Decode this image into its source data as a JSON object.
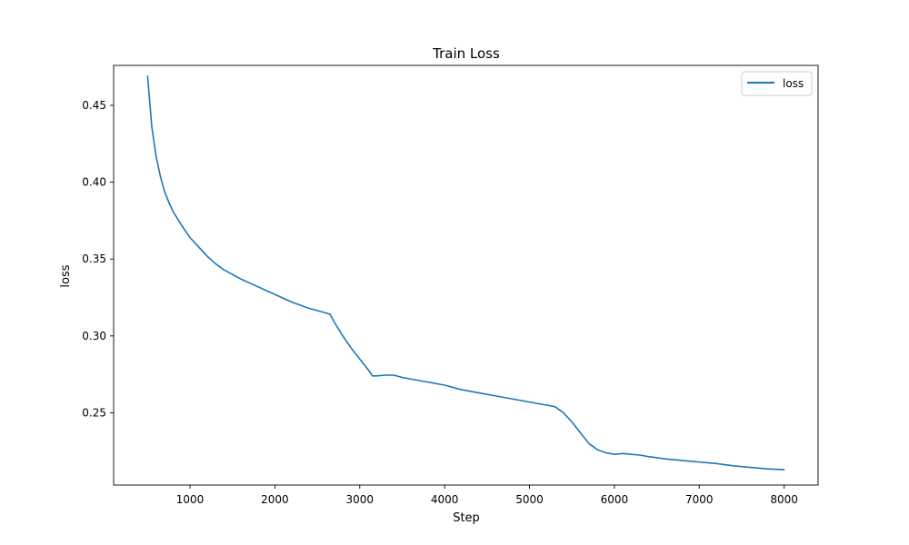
{
  "chart_data": {
    "type": "line",
    "title": "Train Loss",
    "xlabel": "Step",
    "ylabel": "loss",
    "xlim": [
      100,
      8400
    ],
    "ylim": [
      0.203,
      0.476
    ],
    "xticks": [
      1000,
      2000,
      3000,
      4000,
      5000,
      6000,
      7000,
      8000
    ],
    "yticks": [
      0.25,
      0.3,
      0.35,
      0.4,
      0.45
    ],
    "ytick_labels": [
      "0.25",
      "0.30",
      "0.35",
      "0.40",
      "0.45"
    ],
    "grid": false,
    "legend_position": "top-right",
    "series": [
      {
        "name": "loss",
        "color": "#1f77b4",
        "x": [
          500,
          550,
          600,
          650,
          700,
          750,
          800,
          900,
          1000,
          1100,
          1200,
          1300,
          1400,
          1600,
          1800,
          2000,
          2200,
          2400,
          2600,
          2650,
          2700,
          2800,
          2900,
          3000,
          3100,
          3150,
          3200,
          3300,
          3400,
          3500,
          3600,
          3800,
          4000,
          4200,
          4400,
          4600,
          4800,
          5000,
          5200,
          5300,
          5350,
          5400,
          5500,
          5600,
          5700,
          5800,
          5900,
          6000,
          6100,
          6200,
          6300,
          6400,
          6600,
          6800,
          7000,
          7200,
          7400,
          7600,
          7800,
          8000
        ],
        "y": [
          0.469,
          0.436,
          0.417,
          0.404,
          0.394,
          0.387,
          0.381,
          0.372,
          0.364,
          0.358,
          0.352,
          0.347,
          0.343,
          0.337,
          0.332,
          0.327,
          0.322,
          0.318,
          0.315,
          0.314,
          0.309,
          0.3,
          0.292,
          0.285,
          0.278,
          0.274,
          0.274,
          0.2745,
          0.2745,
          0.273,
          0.272,
          0.27,
          0.268,
          0.265,
          0.263,
          0.261,
          0.259,
          0.257,
          0.255,
          0.254,
          0.252,
          0.25,
          0.244,
          0.237,
          0.23,
          0.226,
          0.224,
          0.223,
          0.2235,
          0.223,
          0.2225,
          0.2215,
          0.22,
          0.219,
          0.218,
          0.217,
          0.2155,
          0.2145,
          0.2135,
          0.213
        ]
      }
    ]
  }
}
